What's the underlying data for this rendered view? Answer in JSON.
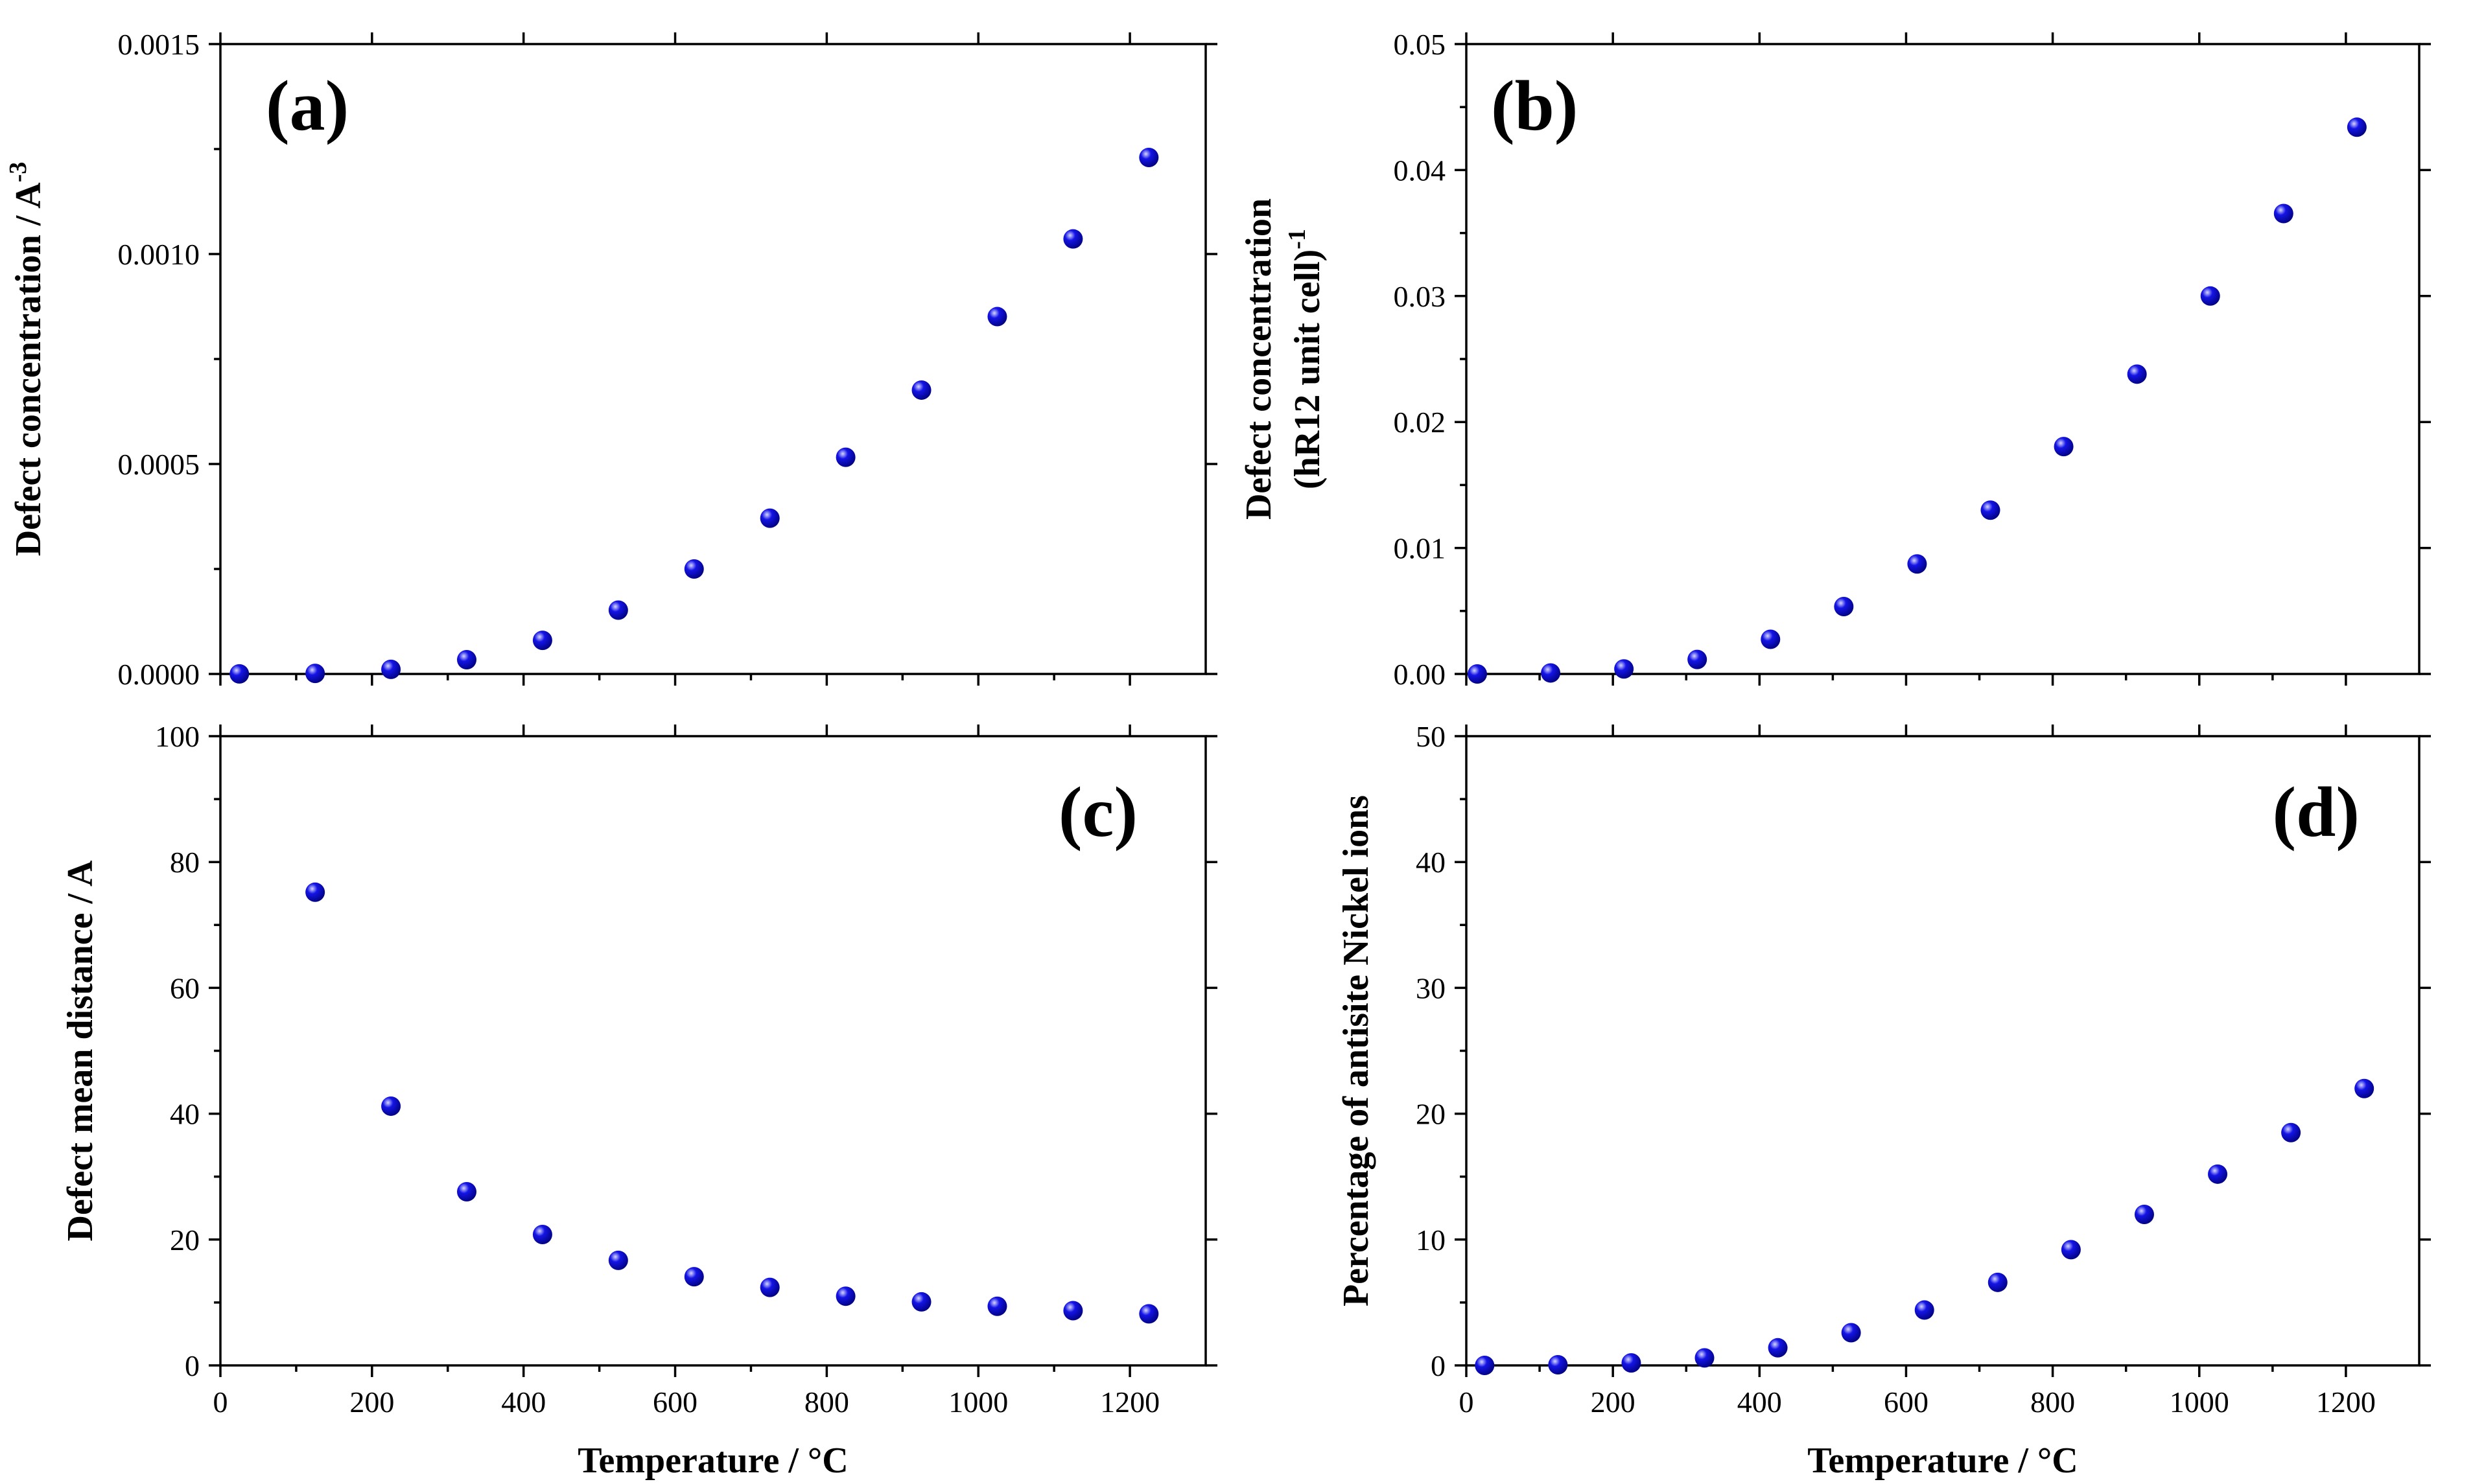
{
  "figure": {
    "marker_color": "#1414e6",
    "marker_highlight": "#d6d6ff"
  },
  "chart_data": [
    {
      "type": "scatter",
      "panel": "(a)",
      "xlabel": "Temperature / °C",
      "ylabel": "Defect concentration / A",
      "ylabel_sup": "-3",
      "xlim": [
        0,
        1300
      ],
      "ylim": [
        0,
        0.0015
      ],
      "xticks": [
        0,
        200,
        400,
        600,
        800,
        1000,
        1200
      ],
      "xtick_labels": [],
      "yticks": [
        0,
        0.0005,
        0.001,
        0.0015
      ],
      "ytick_labels": [
        "0.0000",
        "0.0005",
        "0.0010",
        "0.0015"
      ],
      "x": [
        25,
        125,
        225,
        325,
        425,
        525,
        625,
        725,
        825,
        925,
        1025,
        1125,
        1225
      ],
      "y": [
        2e-07,
        1.4e-06,
        1.1e-05,
        3.4e-05,
        8e-05,
        0.000152,
        0.00025,
        0.000371,
        0.000516,
        0.000676,
        0.000851,
        0.001036,
        0.00123
      ]
    },
    {
      "type": "scatter",
      "panel": "(b)",
      "xlabel": "Temperature / °C",
      "ylabel": "Defect concentration",
      "ylabel2": "(hR12 unit cell)",
      "ylabel_sup": "-1",
      "xlim": [
        0,
        1300
      ],
      "ylim": [
        0,
        0.05
      ],
      "xticks": [
        0,
        200,
        400,
        600,
        800,
        1000,
        1200
      ],
      "xtick_labels": [],
      "yticks": [
        0,
        0.01,
        0.02,
        0.03,
        0.04,
        0.05
      ],
      "ytick_labels": [
        "0.00",
        "0.01",
        "0.02",
        "0.03",
        "0.04",
        "0.05"
      ],
      "x": [
        15,
        115,
        215,
        315,
        415,
        515,
        615,
        715,
        815,
        915,
        1015,
        1115,
        1215
      ],
      "y": [
        0.0,
        8e-05,
        0.0004,
        0.00115,
        0.00275,
        0.00535,
        0.00873,
        0.013,
        0.01805,
        0.0238,
        0.03,
        0.03655,
        0.0434
      ]
    },
    {
      "type": "scatter",
      "panel": "(c)",
      "xlabel": "Temperature / °C",
      "ylabel": "Defect mean distance / A",
      "xlim": [
        0,
        1300
      ],
      "ylim": [
        0,
        100
      ],
      "xticks": [
        0,
        200,
        400,
        600,
        800,
        1000,
        1200
      ],
      "xtick_labels": [
        "0",
        "200",
        "400",
        "600",
        "800",
        "1000",
        "1200"
      ],
      "yticks": [
        0,
        20,
        40,
        60,
        80,
        100
      ],
      "ytick_labels": [
        "0",
        "20",
        "40",
        "60",
        "80",
        "100"
      ],
      "x": [
        125,
        225,
        325,
        425,
        525,
        625,
        725,
        825,
        925,
        1025,
        1125,
        1225
      ],
      "y": [
        75.2,
        41.2,
        27.6,
        20.8,
        16.7,
        14.1,
        12.4,
        11.0,
        10.1,
        9.4,
        8.7,
        8.2
      ]
    },
    {
      "type": "scatter",
      "panel": "(d)",
      "xlabel": "Temperature / °C",
      "ylabel": "Percentage of antisite Nickel ions",
      "xlim": [
        0,
        1300
      ],
      "ylim": [
        0,
        50
      ],
      "xticks": [
        0,
        200,
        400,
        600,
        800,
        1000,
        1200
      ],
      "xtick_labels": [
        "0",
        "200",
        "400",
        "600",
        "800",
        "1000",
        "1200"
      ],
      "yticks": [
        0,
        10,
        20,
        30,
        40,
        50
      ],
      "ytick_labels": [
        "0",
        "10",
        "20",
        "30",
        "40",
        "50"
      ],
      "x": [
        25,
        125,
        225,
        325,
        425,
        525,
        625,
        725,
        825,
        925,
        1025,
        1125,
        1225
      ],
      "y": [
        0.0,
        0.05,
        0.2,
        0.6,
        1.4,
        2.6,
        4.4,
        6.6,
        9.2,
        12.0,
        15.2,
        18.5,
        22.0
      ]
    }
  ]
}
